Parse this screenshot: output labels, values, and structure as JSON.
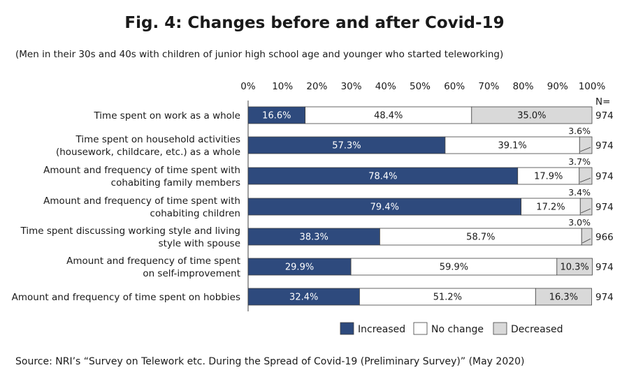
{
  "title": "Fig. 4: Changes before and after Covid-19",
  "subtitle": "(Men in their 30s and 40s with children of junior high school age and younger who started teleworking)",
  "source": "Source: NRI’s “Survey on Telework etc. During the Spread of Covid-19 (Preliminary Survey)” (May 2020)",
  "n_header": "N=",
  "colors": {
    "increased": "#2e4a7d",
    "no_change": "#ffffff",
    "decreased": "#d9d9d9",
    "border": "#404040"
  },
  "chart_data": {
    "type": "bar",
    "orientation": "horizontal",
    "stacked": true,
    "xlim": [
      0,
      100
    ],
    "x_ticks": [
      "0%",
      "10%",
      "20%",
      "30%",
      "40%",
      "50%",
      "60%",
      "70%",
      "80%",
      "90%",
      "100%"
    ],
    "legend_position": "bottom-right",
    "categories": [
      [
        "Time spent on work as a whole"
      ],
      [
        "Time spent on household activities ",
        "(housework, childcare, etc.) as a whole"
      ],
      [
        "Amount and frequency of time spent with",
        "cohabiting family members"
      ],
      [
        "Amount and frequency of time spent with",
        "cohabiting  children"
      ],
      [
        "Time spent discussing working style and living",
        "style with spouse"
      ],
      [
        "Amount and frequency of time spent",
        "on self-improvement"
      ],
      [
        "Amount and frequency of time spent on hobbies"
      ]
    ],
    "n": [
      "974",
      "974",
      "974",
      "974",
      "966",
      "974",
      "974"
    ],
    "series": [
      {
        "name": "Increased",
        "values": [
          16.6,
          57.3,
          78.4,
          79.4,
          38.3,
          29.9,
          32.4
        ]
      },
      {
        "name": "No change",
        "values": [
          48.4,
          39.1,
          17.9,
          17.2,
          58.7,
          59.9,
          51.2
        ]
      },
      {
        "name": "Decreased",
        "values": [
          35.0,
          3.6,
          3.7,
          3.4,
          3.0,
          10.3,
          16.3
        ]
      }
    ],
    "data_labels": [
      [
        "16.6%",
        "48.4%",
        "35.0%"
      ],
      [
        "57.3%",
        "39.1%",
        "3.6%"
      ],
      [
        "78.4%",
        "17.9%",
        "3.7%"
      ],
      [
        "79.4%",
        "17.2%",
        "3.4%"
      ],
      [
        "38.3%",
        "58.7%",
        "3.0%"
      ],
      [
        "29.9%",
        "59.9%",
        "10.3%"
      ],
      [
        "32.4%",
        "51.2%",
        "16.3%"
      ]
    ]
  }
}
